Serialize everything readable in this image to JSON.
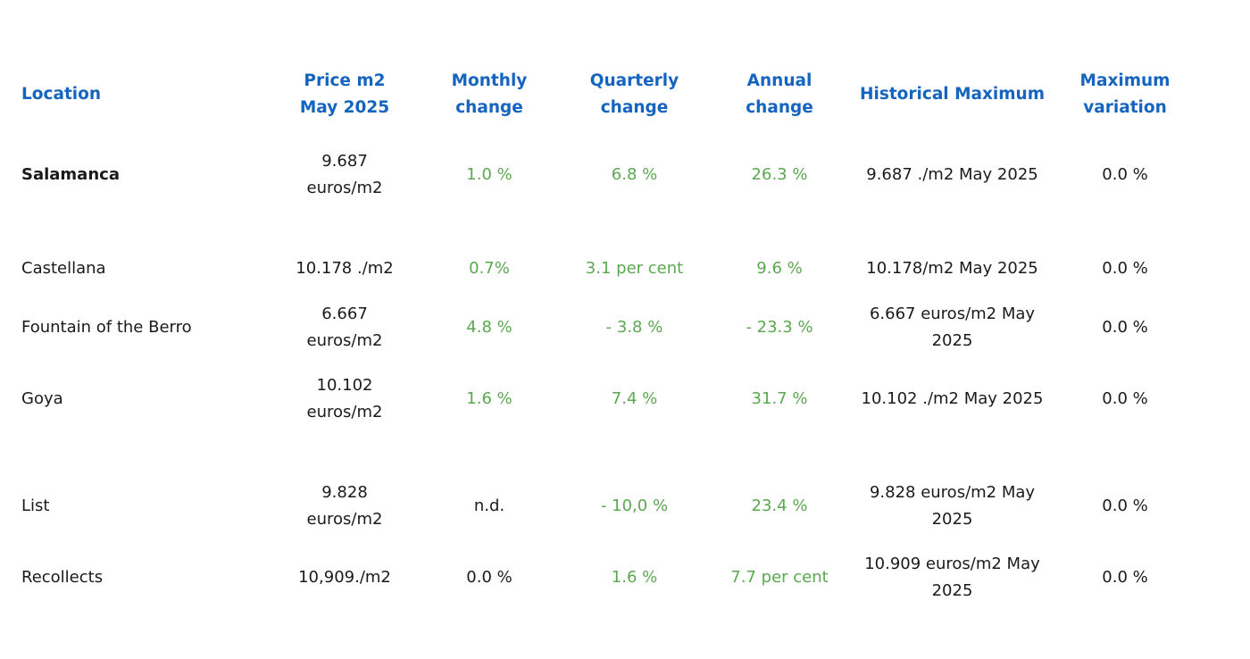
{
  "colors": {
    "header": "#1565c0",
    "positive_change": "#5aa84f",
    "text": "#1a1a1a"
  },
  "header": {
    "location": "Location",
    "price": "Price m2\nMay 2025",
    "monthly": "Monthly\nchange",
    "quarterly": "Quarterly\nchange",
    "annual": "Annual\nchange",
    "historical_max": "Historical Maximum",
    "max_variation": "Maximum\nvariation"
  },
  "rows": [
    {
      "location": "Salamanca",
      "price": "9.687\neuros/m2",
      "monthly": "1.0 %",
      "quarterly": "6.8 %",
      "annual": "26.3 %",
      "historical_max": "9.687 ./m2 May 2025",
      "max_variation": "0.0 %"
    },
    {
      "location": "Castellana",
      "price": "10.178 ./m2",
      "monthly": "0.7%",
      "quarterly": "3.1 per cent",
      "annual": "9.6 %",
      "historical_max": "10.178/m2 May 2025",
      "max_variation": "0.0 %"
    },
    {
      "location": "Fountain of the Berro",
      "price": "6.667\neuros/m2",
      "monthly": "4.8 %",
      "quarterly": "- 3.8 %",
      "annual": "- 23.3 %",
      "historical_max": "6.667 euros/m2 May\n2025",
      "max_variation": "0.0 %"
    },
    {
      "location": "Goya",
      "price": "10.102\neuros/m2",
      "monthly": "1.6 %",
      "quarterly": "7.4 %",
      "annual": "31.7 %",
      "historical_max": "10.102 ./m2 May 2025",
      "max_variation": "0.0 %"
    },
    {
      "location": "List",
      "price": "9.828\neuros/m2",
      "monthly": "n.d.",
      "quarterly": "- 10,0 %",
      "annual": "23.4 %",
      "historical_max": "9.828 euros/m2 May\n2025",
      "max_variation": "0.0 %"
    },
    {
      "location": "Recollects",
      "price": "10,909./m2",
      "monthly": "0.0 %",
      "quarterly": "1.6 %",
      "annual": "7.7 per cent",
      "historical_max": "10.909 euros/m2 May\n2025",
      "max_variation": "0.0 %"
    }
  ]
}
